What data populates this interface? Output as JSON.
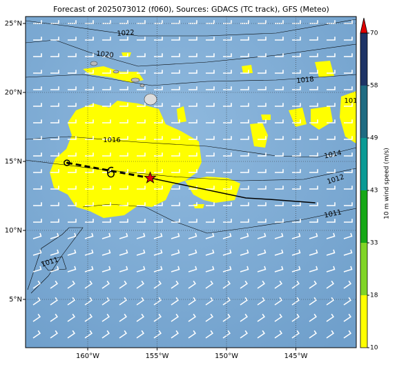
{
  "chart_data": {
    "type": "map",
    "title": "Forecast of 2025073012 (f060), Sources: GDACS (TC track), GFS (Meteo)",
    "xlim": [
      -164.48,
      -140.65
    ],
    "ylim": [
      1.5,
      25.5
    ],
    "xticks": [
      {
        "value": -160,
        "label": "160°W"
      },
      {
        "value": -155,
        "label": "155°W"
      },
      {
        "value": -150,
        "label": "150°W"
      },
      {
        "value": -145,
        "label": "145°W"
      }
    ],
    "yticks": [
      {
        "value": 5,
        "label": "5°N"
      },
      {
        "value": 10,
        "label": "10°N"
      },
      {
        "value": 15,
        "label": "15°N"
      },
      {
        "value": 20,
        "label": "20°N"
      },
      {
        "value": 25,
        "label": "25°N"
      }
    ],
    "grid": true,
    "isobar_labels": [
      "1022",
      "1020",
      "1018",
      "1016",
      "1014",
      "1012",
      "1011",
      "1011",
      "101"
    ],
    "track": {
      "past": {
        "lon": [
          -161.5,
          -155.5
        ],
        "lat": [
          14.9,
          13.8
        ]
      },
      "forecast": {
        "lon": [
          -155.5,
          -148.6,
          -146.9,
          -143.6
        ],
        "lat": [
          13.8,
          12.35,
          12.25,
          12.0
        ]
      }
    },
    "colorbar": {
      "label": "10 m wind speed (m/s)",
      "ticks": [
        10,
        18,
        33,
        43,
        49,
        58,
        70
      ],
      "colors": [
        "#ffff00",
        "#80d426",
        "#16a816",
        "#0a9a94",
        "#1f6b82",
        "#1e3466"
      ],
      "extend_color": "#e00000"
    }
  }
}
